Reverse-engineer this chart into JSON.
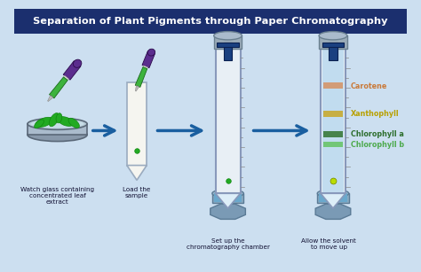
{
  "title": "Separation of Plant Pigments through Paper Chromatography",
  "title_bg": "#1b2f6e",
  "title_color": "#ffffff",
  "bg_color": "#ccdff0",
  "labels": [
    "Watch glass containing\nconcentrated leaf\nextract",
    "Load the\nsample",
    "Set up the\nchromatography chamber",
    "Allow the solvent\nto move up"
  ],
  "pigments": [
    "Carotene",
    "Xanthophyll",
    "Chlorophyll a",
    "Chlorophyll b"
  ],
  "pigment_colors": [
    "#c97a3a",
    "#b8a000",
    "#2d6e2d",
    "#4daa4d"
  ],
  "band_colors": [
    "#d4956a",
    "#c8aa30",
    "#3a7a3a",
    "#6ac46a"
  ],
  "arrow_color": "#1a5fa0",
  "dropper_purple": "#5b2d8e",
  "dropper_green": "#3db33d",
  "leaf_green": "#22aa22",
  "tube_fill": "#b8d8ee",
  "solvent_blue": "#6aa8cc",
  "glass_gray": "#8898aa",
  "stand_gray": "#7a9ab0",
  "tick_color": "#888888"
}
